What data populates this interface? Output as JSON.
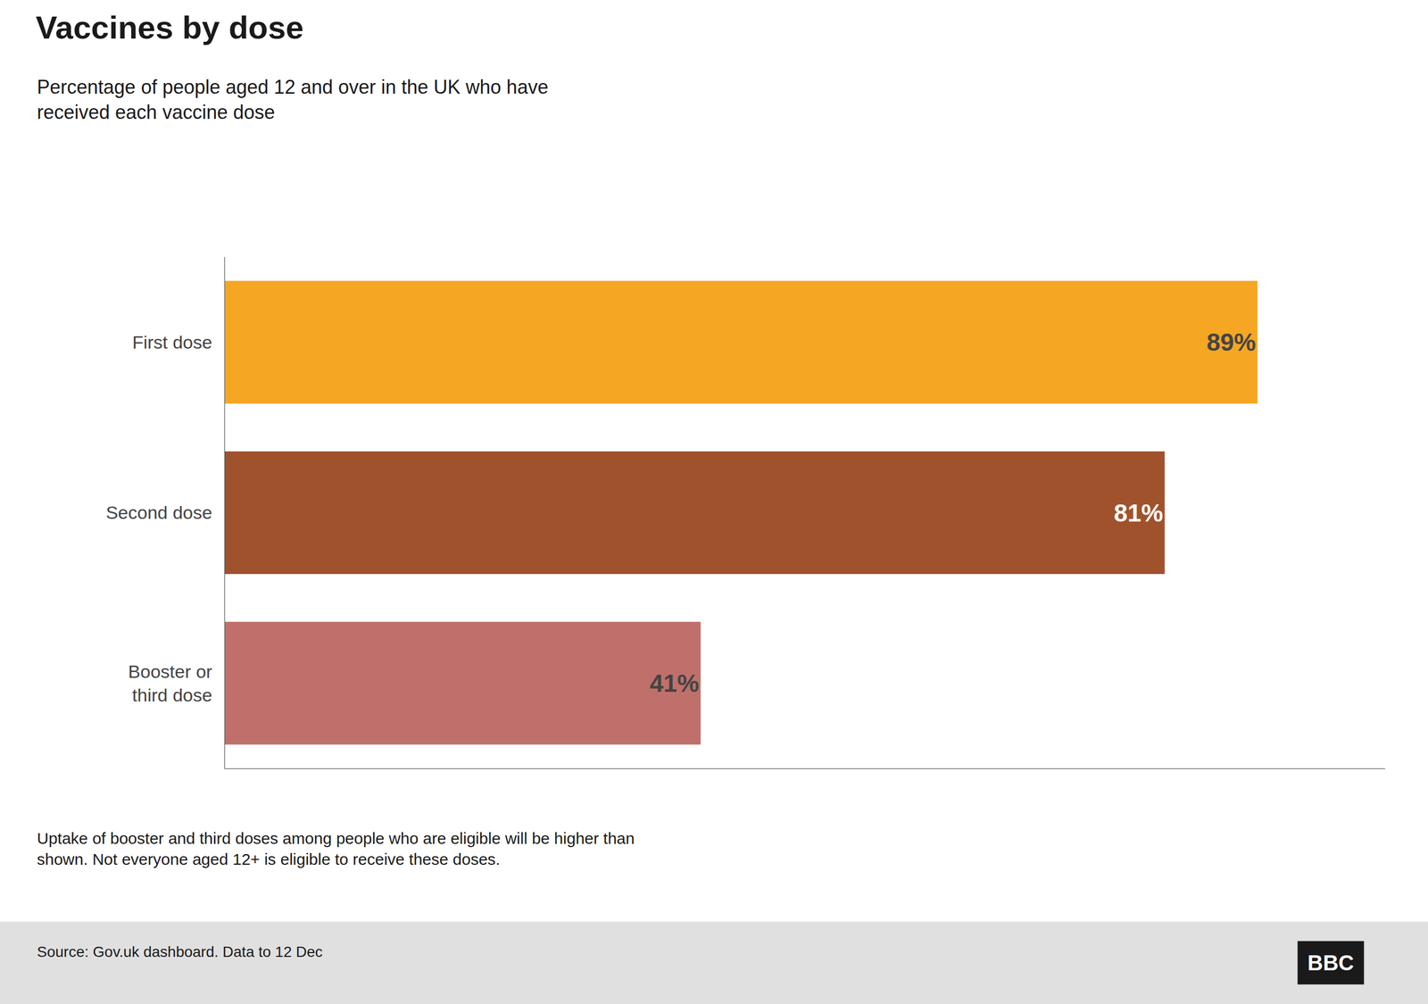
{
  "chart_data": {
    "type": "bar",
    "orientation": "horizontal",
    "title": "Vaccines by dose",
    "subtitle": "Percentage of people aged 12 and over in the UK who have\nreceived each vaccine dose",
    "categories": [
      "First dose",
      "Second dose",
      "Booster or\nthird dose"
    ],
    "values": [
      89,
      81,
      41
    ],
    "value_labels": [
      "89%",
      "81%",
      "41%"
    ],
    "colors": [
      "#F5A623",
      "#A0522D",
      "#C0706A"
    ],
    "data_labels": true,
    "xlim": [
      0,
      100
    ],
    "tick_labels": "y",
    "grid": false,
    "note": "Uptake of booster and third doses among people who are eligible will be higher than\nshown. Not everyone aged 12+ is eligible to receive these doses.",
    "source": "Source: Gov.uk dashboard. Data to 12 Dec",
    "logo": "BBC"
  }
}
